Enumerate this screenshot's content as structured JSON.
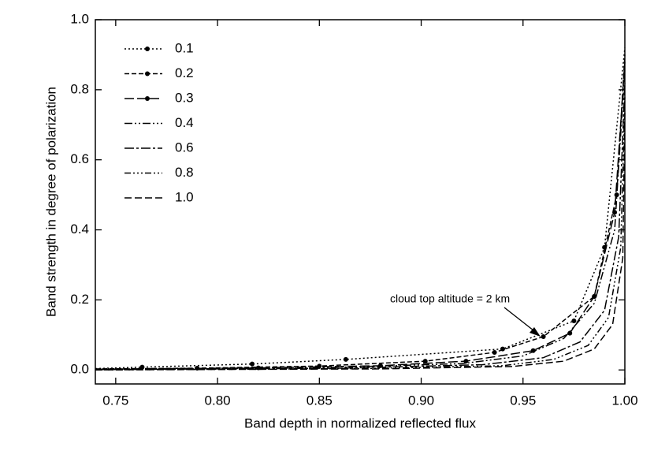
{
  "chart_data": {
    "type": "line",
    "xlabel": "Band depth in normalized reflected flux",
    "ylabel": "Band strength in degree of polarization",
    "xlim": [
      0.74,
      1.0
    ],
    "ylim": [
      -0.04,
      1.0
    ],
    "xticks": [
      0.75,
      {
        "value": 0.8,
        "label": "0.80"
      },
      0.85,
      {
        "value": 0.9,
        "label": "0.90"
      },
      0.95,
      {
        "value": 1.0,
        "label": "1.00"
      }
    ],
    "yticks": [
      {
        "value": 0,
        "label": "0.0"
      },
      0.2,
      0.4,
      0.6,
      0.8,
      {
        "value": 1.0,
        "label": "1.0"
      }
    ],
    "legend": "upper left",
    "annotation": "cloud top altitude = 2 km",
    "series": [
      {
        "name": "0.1",
        "color": "#000000",
        "dash": "2,3",
        "markers": true,
        "x": [
          0.74,
          0.763,
          0.817,
          0.863,
          0.94,
          0.975,
          0.99,
          1.0
        ],
        "values": [
          0.004,
          0.008,
          0.017,
          0.03,
          0.06,
          0.14,
          0.35,
          0.92
        ]
      },
      {
        "name": "0.2",
        "color": "#000000",
        "dash": "6,3",
        "markers": true,
        "x": [
          0.74,
          0.79,
          0.85,
          0.902,
          0.936,
          0.96,
          0.985,
          0.996,
          1.0
        ],
        "values": [
          0.003,
          0.005,
          0.011,
          0.025,
          0.05,
          0.095,
          0.21,
          0.5,
          0.9
        ]
      },
      {
        "name": "0.3",
        "color": "#000000",
        "dash": "12,4",
        "markers": true,
        "x": [
          0.74,
          0.82,
          0.88,
          0.922,
          0.955,
          0.973,
          0.985,
          0.995,
          1.0
        ],
        "values": [
          0.002,
          0.006,
          0.012,
          0.025,
          0.055,
          0.105,
          0.21,
          0.45,
          0.88
        ]
      },
      {
        "name": "0.4",
        "color": "#000000",
        "dash": "10,3,2,3,2,3",
        "markers": false,
        "x": [
          0.74,
          0.85,
          0.92,
          0.95,
          0.97,
          0.985,
          0.995,
          1.0
        ],
        "values": [
          0.001,
          0.006,
          0.018,
          0.04,
          0.09,
          0.19,
          0.4,
          0.86
        ]
      },
      {
        "name": "0.6",
        "color": "#000000",
        "dash": "12,3,3,3",
        "markers": false,
        "x": [
          0.74,
          0.86,
          0.93,
          0.96,
          0.978,
          0.99,
          0.997,
          1.0
        ],
        "values": [
          0.001,
          0.005,
          0.015,
          0.035,
          0.08,
          0.17,
          0.38,
          0.82
        ]
      },
      {
        "name": "0.8",
        "color": "#000000",
        "dash": "8,3,2,3,2,3,2,3",
        "markers": false,
        "x": [
          0.74,
          0.87,
          0.94,
          0.965,
          0.982,
          0.992,
          0.998,
          1.0
        ],
        "values": [
          0.0,
          0.004,
          0.012,
          0.03,
          0.07,
          0.15,
          0.35,
          0.78
        ]
      },
      {
        "name": "1.0",
        "color": "#000000",
        "dash": "9,4",
        "markers": false,
        "x": [
          0.74,
          0.88,
          0.945,
          0.97,
          0.985,
          0.994,
          0.999,
          1.0
        ],
        "values": [
          0.0,
          0.003,
          0.01,
          0.025,
          0.06,
          0.13,
          0.32,
          0.74
        ]
      }
    ]
  }
}
